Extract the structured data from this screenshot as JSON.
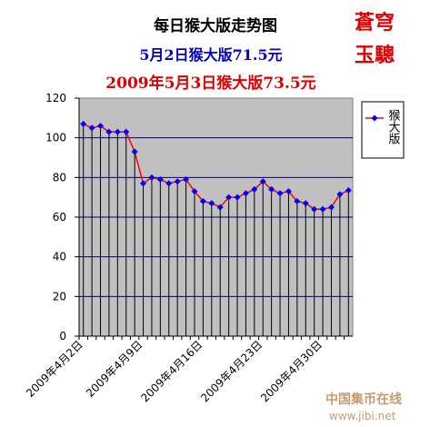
{
  "chart_data": {
    "type": "line",
    "title": "每日猴大版走势图",
    "subtitle": [
      "5月2日猴大版71.5元",
      "2009年5月3日猴大版73.5元"
    ],
    "stamp": [
      "蒼穹",
      "玉驄"
    ],
    "watermark": "中国集币在线",
    "watermark_url": "www.jibi.net",
    "categories": [
      "2009年4月2日",
      null,
      null,
      null,
      null,
      null,
      null,
      "2009年4月9日",
      null,
      null,
      null,
      null,
      null,
      null,
      "2009年4月16日",
      null,
      null,
      null,
      null,
      null,
      null,
      "2009年4月23日",
      null,
      null,
      null,
      null,
      null,
      null,
      "2009年4月30日",
      null,
      null,
      null
    ],
    "series": [
      {
        "name": "猴大版",
        "color": "#ff0000",
        "marker_color": "#0000ff",
        "values": [
          107,
          105,
          106,
          103,
          103,
          103,
          93,
          77,
          80,
          79,
          77,
          78,
          79,
          73,
          68,
          67,
          65,
          70,
          70,
          72,
          74,
          78,
          74,
          72,
          73,
          68,
          67,
          64,
          64,
          65,
          71.5,
          73.5
        ]
      }
    ],
    "ylim": [
      0,
      120
    ],
    "yticks": [
      0,
      20,
      40,
      60,
      80,
      100,
      120
    ],
    "grid": true,
    "drop_lines": true,
    "plot_color": "#c0c0c0",
    "legend": "right"
  }
}
